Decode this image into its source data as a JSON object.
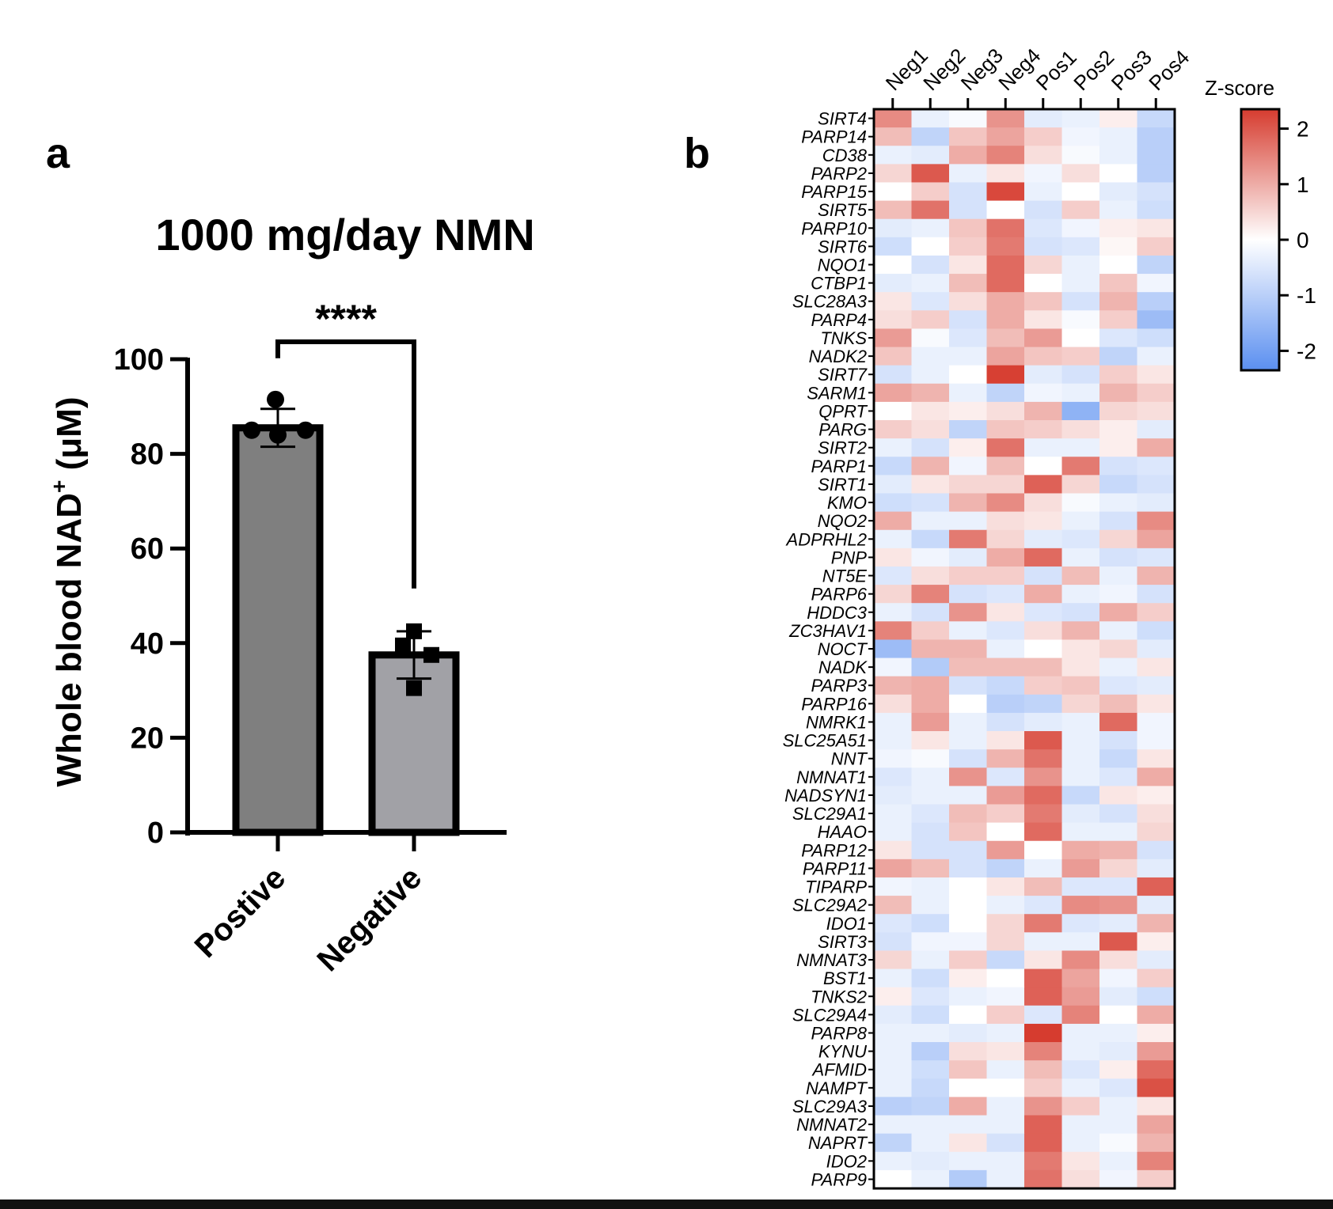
{
  "panels": {
    "a": {
      "letter": "a",
      "significance": "****"
    },
    "b": {
      "letter": "b"
    }
  },
  "colorbar": {
    "title": "Z-score",
    "ticks": [
      "2",
      "1",
      "0",
      "-1",
      "-2"
    ],
    "tick_values": [
      2,
      1,
      0,
      -1,
      -2
    ],
    "range": [
      -2.35,
      2.35
    ],
    "colors": {
      "high": "#d63c2f",
      "mid": "#ffffff",
      "low": "#5b8ff0"
    }
  },
  "chart_data": [
    {
      "type": "bar",
      "title": "1000 mg/day NMN",
      "ylabel_main": "Whole blood NAD",
      "ylabel_sup": "+",
      "ylabel_unit": " (μM)",
      "categories": [
        "Postive",
        "Negative"
      ],
      "values": [
        85.5,
        37.5
      ],
      "error": [
        [
          81.5,
          89.5
        ],
        [
          32.5,
          42.5
        ]
      ],
      "points": [
        [
          85,
          91.5,
          84,
          85
        ],
        [
          42.5,
          39.5,
          37.5,
          30.5
        ]
      ],
      "point_markers": [
        "circle",
        "square"
      ],
      "bar_colors": [
        "#7f7f7f",
        "#a1a1a6"
      ],
      "ylim": [
        0,
        100
      ],
      "yticks": [
        0,
        20,
        40,
        60,
        80,
        100
      ],
      "ytick_labels": [
        "0",
        "20",
        "40",
        "60",
        "80",
        "100"
      ],
      "comparison": {
        "groups": [
          "Postive",
          "Negative"
        ],
        "label": "****"
      }
    },
    {
      "type": "heatmap",
      "value_name": "Z-score",
      "columns": [
        "Neg1",
        "Neg2",
        "Neg3",
        "Neg4",
        "Pos1",
        "Pos2",
        "Pos3",
        "Pos4"
      ],
      "rows": [
        "SIRT4",
        "PARP14",
        "CD38",
        "PARP2",
        "PARP15",
        "SIRT5",
        "PARP10",
        "SIRT6",
        "NQO1",
        "CTBP1",
        "SLC28A3",
        "PARP4",
        "TNKS",
        "NADK2",
        "SIRT7",
        "SARM1",
        "QPRT",
        "PARG",
        "SIRT2",
        "PARP1",
        "SIRT1",
        "KMO",
        "NQO2",
        "ADPRHL2",
        "PNP",
        "NT5E",
        "PARP6",
        "HDDC3",
        "ZC3HAV1",
        "NOCT",
        "NADK",
        "PARP3",
        "PARP16",
        "NMRK1",
        "SLC25A51",
        "NNT",
        "NMNAT1",
        "NADSYN1",
        "SLC29A1",
        "HAAO",
        "PARP12",
        "PARP11",
        "TIPARP",
        "SLC29A2",
        "IDO1",
        "SIRT3",
        "NMNAT3",
        "BST1",
        "TNKS2",
        "SLC29A4",
        "PARP8",
        "KYNU",
        "AFMID",
        "NAMPT",
        "SLC29A3",
        "NMNAT2",
        "NAPRT",
        "IDO2",
        "PARP9"
      ],
      "values": [
        [
          1.4,
          -0.3,
          -0.1,
          1.3,
          -0.4,
          -0.3,
          0.2,
          -0.8
        ],
        [
          0.8,
          -0.9,
          0.7,
          1.1,
          0.6,
          -0.2,
          -0.3,
          -1.0
        ],
        [
          -0.3,
          -0.4,
          1.0,
          1.5,
          0.4,
          -0.1,
          -0.3,
          -1.0
        ],
        [
          0.5,
          2.0,
          -0.3,
          0.3,
          -0.2,
          0.4,
          0.0,
          -1.0
        ],
        [
          0.0,
          0.6,
          -0.6,
          2.2,
          -0.3,
          0.0,
          -0.4,
          -0.6
        ],
        [
          0.8,
          1.7,
          -0.6,
          0.0,
          -0.6,
          0.6,
          -0.3,
          -0.7
        ],
        [
          -0.4,
          -0.3,
          0.7,
          1.7,
          -0.5,
          -0.2,
          0.2,
          0.3
        ],
        [
          -0.7,
          0.0,
          0.6,
          1.6,
          -0.6,
          -0.5,
          0.1,
          0.6
        ],
        [
          0.0,
          -0.6,
          0.3,
          1.8,
          0.5,
          -0.3,
          0.0,
          -0.9
        ],
        [
          -0.4,
          -0.3,
          0.8,
          1.8,
          0.0,
          -0.3,
          0.7,
          -0.2
        ],
        [
          0.3,
          -0.5,
          0.4,
          1.0,
          0.7,
          -0.6,
          0.9,
          -1.0
        ],
        [
          0.4,
          0.6,
          -0.6,
          1.0,
          0.3,
          -0.1,
          0.6,
          -1.4
        ],
        [
          1.2,
          -0.1,
          -0.5,
          0.8,
          1.2,
          0.0,
          -0.5,
          -0.7
        ],
        [
          0.7,
          -0.3,
          -0.3,
          1.1,
          0.7,
          0.6,
          -0.9,
          -0.3
        ],
        [
          -0.6,
          -0.3,
          0.0,
          2.3,
          -0.4,
          -0.6,
          0.6,
          0.3
        ],
        [
          1.1,
          0.9,
          -0.3,
          -0.9,
          -0.2,
          -0.3,
          0.9,
          0.6
        ],
        [
          0.0,
          0.3,
          0.2,
          0.4,
          0.9,
          -1.6,
          0.5,
          0.4
        ],
        [
          0.6,
          0.4,
          -0.9,
          0.7,
          0.6,
          0.4,
          0.2,
          -0.4
        ],
        [
          -0.3,
          -0.6,
          0.2,
          1.7,
          -0.3,
          -0.3,
          0.2,
          1.0
        ],
        [
          -0.8,
          0.9,
          -0.2,
          0.8,
          0.0,
          1.6,
          -0.6,
          -0.5
        ],
        [
          -0.4,
          0.3,
          0.5,
          0.5,
          1.9,
          0.5,
          -0.8,
          -0.6
        ],
        [
          -0.7,
          -0.6,
          0.9,
          1.4,
          0.4,
          -0.1,
          -0.3,
          -0.4
        ],
        [
          1.0,
          -0.3,
          -0.3,
          0.4,
          0.3,
          -0.3,
          -0.6,
          1.4
        ],
        [
          -0.3,
          -0.8,
          1.6,
          0.5,
          -0.4,
          -0.5,
          0.5,
          1.1
        ],
        [
          0.3,
          -0.2,
          -0.4,
          1.0,
          1.8,
          -0.3,
          -0.6,
          -0.5
        ],
        [
          -0.5,
          0.4,
          0.6,
          0.6,
          -0.6,
          0.8,
          -0.3,
          0.9
        ],
        [
          0.5,
          1.5,
          -0.6,
          -0.5,
          1.0,
          -0.3,
          -0.2,
          -0.6
        ],
        [
          -0.3,
          -0.6,
          1.3,
          0.3,
          -0.5,
          -0.6,
          1.0,
          0.6
        ],
        [
          1.5,
          0.6,
          -0.3,
          -0.5,
          0.4,
          0.9,
          -0.3,
          -0.7
        ],
        [
          -1.4,
          0.9,
          0.9,
          -0.3,
          0.0,
          0.3,
          0.5,
          -0.4
        ],
        [
          -0.2,
          -1.1,
          0.8,
          0.8,
          0.8,
          0.3,
          -0.3,
          0.3
        ],
        [
          0.9,
          1.0,
          -0.6,
          -0.8,
          0.6,
          0.7,
          -0.5,
          -0.4
        ],
        [
          0.4,
          1.0,
          0.0,
          -1.0,
          -0.9,
          0.5,
          0.8,
          0.3
        ],
        [
          -0.3,
          1.2,
          -0.3,
          -0.6,
          -0.4,
          -0.3,
          1.8,
          -0.2
        ],
        [
          -0.3,
          0.3,
          -0.3,
          0.3,
          2.0,
          -0.3,
          -0.6,
          -0.2
        ],
        [
          -0.2,
          -0.1,
          -0.6,
          0.9,
          1.7,
          -0.3,
          -0.8,
          0.3
        ],
        [
          -0.5,
          -0.3,
          1.3,
          -0.5,
          1.3,
          -0.3,
          -0.5,
          1.0
        ],
        [
          -0.4,
          -0.3,
          -0.3,
          1.2,
          1.8,
          -0.8,
          0.3,
          0.2
        ],
        [
          -0.3,
          -0.5,
          0.8,
          0.6,
          1.6,
          -0.4,
          -0.6,
          0.4
        ],
        [
          -0.3,
          -0.6,
          0.7,
          0.0,
          1.8,
          -0.3,
          -0.3,
          0.5
        ],
        [
          0.3,
          -0.6,
          -0.6,
          1.2,
          0.0,
          1.0,
          0.9,
          -0.6
        ],
        [
          1.1,
          0.8,
          -0.6,
          -0.9,
          -0.3,
          1.2,
          0.5,
          -0.4
        ],
        [
          -0.2,
          -0.3,
          0.0,
          0.3,
          0.8,
          -0.5,
          -0.5,
          1.9
        ],
        [
          0.8,
          -0.3,
          0.0,
          -0.3,
          -0.5,
          1.4,
          1.3,
          -0.4
        ],
        [
          -0.5,
          -0.7,
          0.0,
          0.5,
          1.6,
          -0.5,
          -0.4,
          0.9
        ],
        [
          -0.6,
          -0.2,
          -0.2,
          0.5,
          -0.3,
          -0.3,
          2.0,
          0.2
        ],
        [
          0.5,
          -0.3,
          0.6,
          -0.8,
          0.3,
          1.4,
          0.4,
          -0.4
        ],
        [
          -0.3,
          -0.7,
          0.2,
          0.0,
          1.9,
          1.1,
          -0.2,
          0.6
        ],
        [
          0.2,
          -0.5,
          -0.3,
          -0.2,
          1.9,
          1.2,
          -0.4,
          -0.7
        ],
        [
          -0.4,
          -0.7,
          0.0,
          0.6,
          -0.5,
          1.5,
          0.0,
          1.0
        ],
        [
          -0.3,
          -0.3,
          -0.4,
          -0.3,
          2.4,
          -0.3,
          -0.3,
          0.2
        ],
        [
          -0.3,
          -1.0,
          0.4,
          0.3,
          1.5,
          -0.3,
          -0.4,
          1.2
        ],
        [
          -0.3,
          -0.7,
          0.7,
          -0.3,
          0.8,
          -0.5,
          0.2,
          1.8
        ],
        [
          -0.3,
          -0.8,
          0.0,
          0.0,
          0.6,
          -0.3,
          -0.5,
          2.1
        ],
        [
          -1.0,
          -0.9,
          1.0,
          -0.3,
          1.3,
          0.6,
          -0.3,
          0.3
        ],
        [
          -0.3,
          -0.3,
          -0.3,
          -0.3,
          1.9,
          -0.3,
          -0.3,
          1.1
        ],
        [
          -0.9,
          -0.3,
          0.3,
          -0.6,
          1.9,
          -0.3,
          -0.1,
          0.9
        ],
        [
          -0.3,
          -0.4,
          -0.3,
          -0.3,
          1.6,
          0.3,
          -0.3,
          1.5
        ],
        [
          0.0,
          -0.3,
          -1.1,
          -0.3,
          1.7,
          0.4,
          -0.2,
          0.6
        ]
      ]
    }
  ]
}
